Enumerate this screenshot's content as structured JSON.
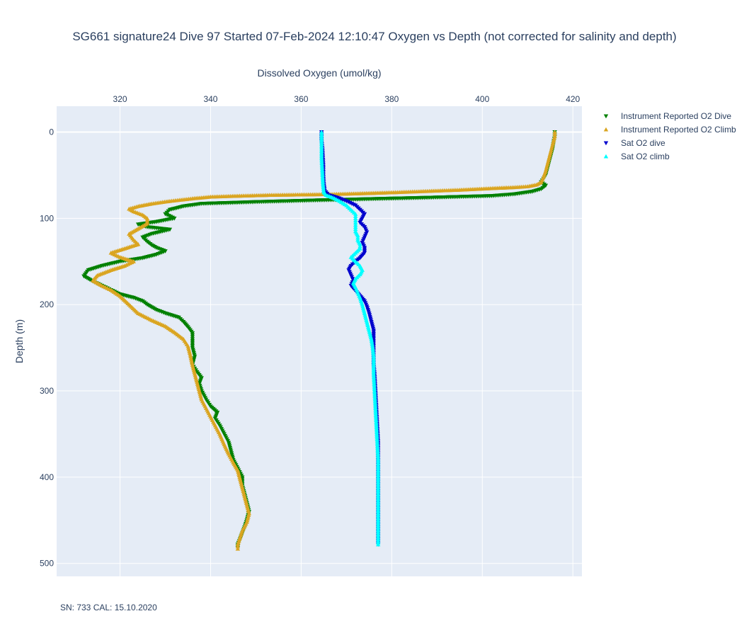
{
  "chart_data": {
    "type": "scatter",
    "title": "SG661 signature24 Dive 97 Started 07-Feb-2024 12:10:47  Oxygen vs Depth (not corrected for salinity and depth)",
    "xlabel": "Dissolved Oxygen (umol/kg)",
    "ylabel": "Depth (m)",
    "xlim": [
      306,
      422
    ],
    "ylim": [
      515,
      -30
    ],
    "x_axis_side": "top",
    "y_reversed": true,
    "grid": true,
    "xticks": [
      320,
      340,
      360,
      380,
      400,
      420
    ],
    "yticks": [
      0,
      100,
      200,
      300,
      400,
      500
    ],
    "legend_position": "right",
    "annotation": "SN: 733  CAL: 15.10.2020",
    "series": [
      {
        "name": "Instrument Reported O2 Dive",
        "color": "#008000",
        "marker": "triangle-down",
        "points": [
          [
            416,
            0
          ],
          [
            416,
            5
          ],
          [
            415.8,
            10
          ],
          [
            415.5,
            20
          ],
          [
            415,
            30
          ],
          [
            414.5,
            40
          ],
          [
            414,
            50
          ],
          [
            413,
            58
          ],
          [
            414,
            62
          ],
          [
            413,
            66
          ],
          [
            411,
            69
          ],
          [
            407,
            72
          ],
          [
            402,
            74
          ],
          [
            395,
            75
          ],
          [
            388,
            76
          ],
          [
            380,
            77
          ],
          [
            372,
            78
          ],
          [
            364,
            79
          ],
          [
            357,
            80
          ],
          [
            350,
            81
          ],
          [
            344,
            82
          ],
          [
            338,
            83
          ],
          [
            334,
            86
          ],
          [
            331,
            90
          ],
          [
            330,
            95
          ],
          [
            332,
            100
          ],
          [
            328,
            104
          ],
          [
            324,
            107
          ],
          [
            326,
            110
          ],
          [
            331,
            113
          ],
          [
            327,
            118
          ],
          [
            325,
            122
          ],
          [
            326,
            127
          ],
          [
            327,
            131
          ],
          [
            328,
            134
          ],
          [
            330,
            138
          ],
          [
            328,
            142
          ],
          [
            325,
            146
          ],
          [
            320,
            150
          ],
          [
            316,
            155
          ],
          [
            313,
            160
          ],
          [
            312,
            167
          ],
          [
            314,
            173
          ],
          [
            316,
            178
          ],
          [
            318,
            183
          ],
          [
            320,
            188
          ],
          [
            323,
            192
          ],
          [
            325,
            196
          ],
          [
            326,
            200
          ],
          [
            327,
            203
          ],
          [
            328,
            206
          ],
          [
            330,
            210
          ],
          [
            333,
            215
          ],
          [
            334,
            220
          ],
          [
            335,
            226
          ],
          [
            336,
            233
          ],
          [
            336,
            240
          ],
          [
            336,
            250
          ],
          [
            336.5,
            260
          ],
          [
            336,
            270
          ],
          [
            337,
            278
          ],
          [
            338,
            285
          ],
          [
            337.5,
            292
          ],
          [
            338,
            300
          ],
          [
            339,
            310
          ],
          [
            340,
            318
          ],
          [
            341.5,
            325
          ],
          [
            341,
            332
          ],
          [
            342,
            340
          ],
          [
            343,
            350
          ],
          [
            344,
            360
          ],
          [
            344.5,
            370
          ],
          [
            345,
            380
          ],
          [
            346,
            390
          ],
          [
            347,
            400
          ],
          [
            347,
            410
          ],
          [
            347.5,
            420
          ],
          [
            348,
            430
          ],
          [
            348.5,
            440
          ],
          [
            348,
            450
          ],
          [
            347.5,
            458
          ],
          [
            347,
            465
          ],
          [
            346.5,
            472
          ],
          [
            346,
            478
          ],
          [
            346,
            482
          ]
        ]
      },
      {
        "name": "Instrument Reported O2 Climb",
        "color": "#DAA520",
        "marker": "triangle-up",
        "points": [
          [
            346,
            483
          ],
          [
            346,
            478
          ],
          [
            346.5,
            470
          ],
          [
            347,
            462
          ],
          [
            348,
            452
          ],
          [
            348.5,
            442
          ],
          [
            348,
            432
          ],
          [
            347.5,
            422
          ],
          [
            347,
            412
          ],
          [
            346.5,
            402
          ],
          [
            346,
            392
          ],
          [
            345,
            383
          ],
          [
            344,
            373
          ],
          [
            343,
            362
          ],
          [
            342,
            350
          ],
          [
            341,
            340
          ],
          [
            340,
            330
          ],
          [
            339,
            320
          ],
          [
            338,
            310
          ],
          [
            337.5,
            300
          ],
          [
            337,
            290
          ],
          [
            336.5,
            280
          ],
          [
            336,
            270
          ],
          [
            335.5,
            258
          ],
          [
            335,
            248
          ],
          [
            334,
            240
          ],
          [
            332,
            232
          ],
          [
            330,
            225
          ],
          [
            327,
            218
          ],
          [
            324,
            210
          ],
          [
            322,
            200
          ],
          [
            320,
            190
          ],
          [
            318,
            183
          ],
          [
            316,
            178
          ],
          [
            314,
            172
          ],
          [
            315,
            166
          ],
          [
            318,
            160
          ],
          [
            321,
            155
          ],
          [
            323,
            150
          ],
          [
            320,
            145
          ],
          [
            318,
            140
          ],
          [
            321,
            135
          ],
          [
            324,
            130
          ],
          [
            323,
            125
          ],
          [
            322,
            118
          ],
          [
            324,
            112
          ],
          [
            326,
            106
          ],
          [
            326,
            100
          ],
          [
            325,
            96
          ],
          [
            323,
            92
          ],
          [
            322,
            89
          ],
          [
            324,
            86
          ],
          [
            327,
            83
          ],
          [
            331,
            80
          ],
          [
            336,
            77
          ],
          [
            340,
            75
          ],
          [
            346,
            74
          ],
          [
            353,
            73
          ],
          [
            360,
            72.5
          ],
          [
            367,
            72
          ],
          [
            374,
            71
          ],
          [
            380,
            70
          ],
          [
            385,
            69
          ],
          [
            390,
            68
          ],
          [
            395,
            67
          ],
          [
            399,
            66
          ],
          [
            403,
            65
          ],
          [
            407,
            64
          ],
          [
            410,
            63
          ],
          [
            412,
            61
          ],
          [
            413,
            58
          ],
          [
            413.5,
            52
          ],
          [
            414,
            45
          ],
          [
            414.5,
            35
          ],
          [
            415,
            25
          ],
          [
            415.5,
            15
          ],
          [
            416,
            5
          ],
          [
            416,
            0
          ]
        ]
      },
      {
        "name": "Sat O2 dive",
        "color": "#0000CD",
        "marker": "triangle-down",
        "points": [
          [
            364.5,
            0
          ],
          [
            364.5,
            10
          ],
          [
            364.7,
            20
          ],
          [
            364.8,
            30
          ],
          [
            364.9,
            40
          ],
          [
            364.9,
            50
          ],
          [
            365,
            60
          ],
          [
            365.2,
            68
          ],
          [
            366,
            73
          ],
          [
            368,
            76
          ],
          [
            370,
            80
          ],
          [
            372,
            85
          ],
          [
            373,
            90
          ],
          [
            374,
            95
          ],
          [
            373.5,
            100
          ],
          [
            373,
            105
          ],
          [
            374,
            110
          ],
          [
            374.5,
            116
          ],
          [
            374,
            122
          ],
          [
            373.5,
            128
          ],
          [
            374,
            134
          ],
          [
            374,
            140
          ],
          [
            373,
            146
          ],
          [
            372,
            150
          ],
          [
            371,
            155
          ],
          [
            370.5,
            160
          ],
          [
            371,
            166
          ],
          [
            371.5,
            172
          ],
          [
            371,
            178
          ],
          [
            372,
            184
          ],
          [
            373,
            190
          ],
          [
            374,
            196
          ],
          [
            374.5,
            202
          ],
          [
            375,
            210
          ],
          [
            375.5,
            220
          ],
          [
            376,
            230
          ],
          [
            376,
            240
          ],
          [
            376,
            250
          ],
          [
            376,
            260
          ],
          [
            376,
            270
          ],
          [
            376.2,
            280
          ],
          [
            376.3,
            290
          ],
          [
            376.4,
            300
          ],
          [
            376.5,
            310
          ],
          [
            376.6,
            320
          ],
          [
            376.7,
            330
          ],
          [
            376.8,
            340
          ],
          [
            376.9,
            350
          ],
          [
            377,
            360
          ],
          [
            377,
            370
          ],
          [
            377,
            380
          ],
          [
            377,
            390
          ],
          [
            377,
            400
          ],
          [
            377,
            410
          ],
          [
            377,
            420
          ],
          [
            377,
            430
          ],
          [
            377,
            440
          ],
          [
            377,
            450
          ],
          [
            377,
            460
          ],
          [
            377,
            470
          ],
          [
            377,
            478
          ]
        ]
      },
      {
        "name": "Sat O2 climb",
        "color": "#00FFFF",
        "marker": "triangle-up",
        "points": [
          [
            377,
            478
          ],
          [
            377,
            470
          ],
          [
            377,
            460
          ],
          [
            377,
            450
          ],
          [
            377,
            440
          ],
          [
            377,
            430
          ],
          [
            377,
            420
          ],
          [
            377,
            410
          ],
          [
            377,
            400
          ],
          [
            377,
            390
          ],
          [
            377,
            380
          ],
          [
            376.9,
            370
          ],
          [
            376.8,
            360
          ],
          [
            376.7,
            350
          ],
          [
            376.6,
            340
          ],
          [
            376.5,
            330
          ],
          [
            376.4,
            320
          ],
          [
            376.3,
            310
          ],
          [
            376.2,
            300
          ],
          [
            376.1,
            290
          ],
          [
            376,
            280
          ],
          [
            376,
            270
          ],
          [
            376,
            260
          ],
          [
            375.8,
            250
          ],
          [
            375.5,
            240
          ],
          [
            375,
            230
          ],
          [
            374.5,
            220
          ],
          [
            374,
            210
          ],
          [
            373.5,
            200
          ],
          [
            373,
            192
          ],
          [
            372.5,
            186
          ],
          [
            372,
            180
          ],
          [
            371.5,
            175
          ],
          [
            372,
            170
          ],
          [
            373,
            165
          ],
          [
            373.5,
            160
          ],
          [
            373,
            155
          ],
          [
            372,
            150
          ],
          [
            371,
            145
          ],
          [
            372,
            140
          ],
          [
            373,
            135
          ],
          [
            373,
            130
          ],
          [
            372.5,
            125
          ],
          [
            372.5,
            120
          ],
          [
            372,
            115
          ],
          [
            372,
            110
          ],
          [
            372,
            105
          ],
          [
            372,
            100
          ],
          [
            372,
            95
          ],
          [
            371,
            90
          ],
          [
            370,
            85
          ],
          [
            368.5,
            80
          ],
          [
            367,
            76
          ],
          [
            365.5,
            73
          ],
          [
            365,
            70
          ],
          [
            364.8,
            60
          ],
          [
            364.7,
            50
          ],
          [
            364.6,
            40
          ],
          [
            364.5,
            30
          ],
          [
            364.5,
            20
          ],
          [
            364.5,
            10
          ],
          [
            364.5,
            0
          ]
        ]
      }
    ]
  }
}
